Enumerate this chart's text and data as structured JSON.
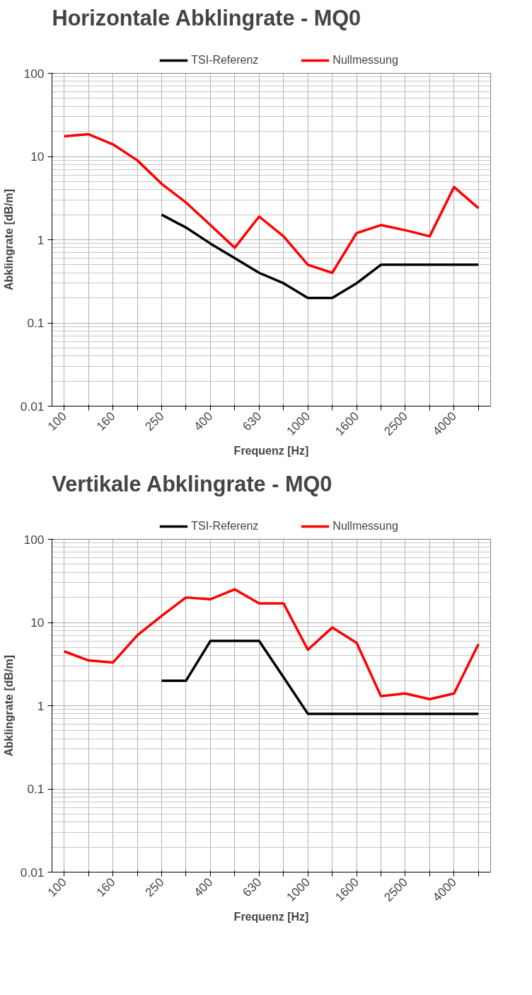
{
  "chart_data": [
    {
      "type": "line",
      "title": "Horizontale Abklingrate - MQ0",
      "xlabel": "Frequenz [Hz]",
      "ylabel": "Abklingrate [dB/m]",
      "categories": [
        "100",
        null,
        "160",
        null,
        "250",
        null,
        "400",
        null,
        "630",
        null,
        "1000",
        null,
        "1600",
        null,
        "2500",
        null,
        "4000",
        null
      ],
      "series": [
        {
          "name": "TSI-Referenz",
          "color": "#000000",
          "values": [
            null,
            null,
            null,
            null,
            2.0,
            1.4,
            0.9,
            0.6,
            0.4,
            0.3,
            0.2,
            0.2,
            0.3,
            0.5,
            0.5,
            0.5,
            0.5,
            0.5
          ]
        },
        {
          "name": "Nullmessung",
          "color": "#ff0000",
          "values": [
            17.5,
            18.5,
            14,
            9,
            4.7,
            2.8,
            1.5,
            0.8,
            1.9,
            1.1,
            0.5,
            0.4,
            1.2,
            1.5,
            1.3,
            1.1,
            4.3,
            2.4
          ]
        }
      ],
      "log": "y",
      "ylim": [
        0.01,
        100
      ],
      "yticks": [
        0.01,
        0.1,
        1,
        10,
        100
      ],
      "grid": true,
      "legend": "top",
      "marker": "none",
      "line_style": "solid"
    },
    {
      "type": "line",
      "title": "Vertikale Abklingrate - MQ0",
      "xlabel": "Frequenz [Hz]",
      "ylabel": "Abklingrate [dB/m]",
      "categories": [
        "100",
        null,
        "160",
        null,
        "250",
        null,
        "400",
        null,
        "630",
        null,
        "1000",
        null,
        "1600",
        null,
        "2500",
        null,
        "4000",
        null
      ],
      "series": [
        {
          "name": "TSI-Referenz",
          "color": "#000000",
          "values": [
            null,
            null,
            null,
            null,
            2.0,
            2.0,
            6,
            6,
            6,
            2.2,
            0.8,
            0.8,
            0.8,
            0.8,
            0.8,
            0.8,
            0.8,
            0.8
          ]
        },
        {
          "name": "Nullmessung",
          "color": "#ff0000",
          "values": [
            4.5,
            3.5,
            3.3,
            7,
            12,
            20,
            19,
            25,
            17,
            17,
            4.7,
            8.7,
            5.7,
            1.3,
            1.4,
            1.2,
            1.4,
            5.5
          ]
        }
      ],
      "log": "y",
      "ylim": [
        0.01,
        100
      ],
      "yticks": [
        0.01,
        0.1,
        1,
        10,
        100
      ],
      "grid": true,
      "legend": "top",
      "marker": "none",
      "line_style": "solid"
    }
  ]
}
